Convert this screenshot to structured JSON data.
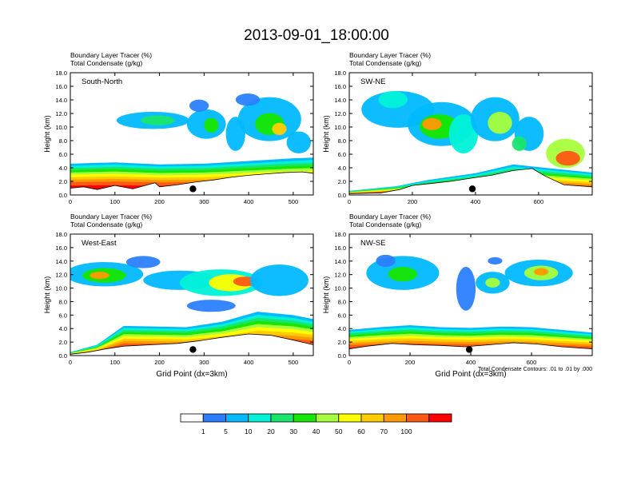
{
  "title": "2013-09-01_18:00:00",
  "colors": [
    "#ffffff",
    "#2b7fff",
    "#00b9ff",
    "#00f2d8",
    "#1ae56b",
    "#16e600",
    "#a6ff3c",
    "#ffff00",
    "#ffcc00",
    "#ff9900",
    "#ff5a14",
    "#ff0000"
  ],
  "colorbar": {
    "labels": [
      "1",
      "5",
      "10",
      "20",
      "30",
      "40",
      "50",
      "60",
      "70",
      "100"
    ]
  },
  "chart_data": [
    {
      "type": "heatmap",
      "panel_label": "South-North",
      "titles": [
        "Boundary Layer Tracer   (%)",
        "Total Condensate   (g/kg)"
      ],
      "ylabel": "Height (km)",
      "xlabel": "",
      "ylim": [
        0,
        18
      ],
      "xlim": [
        0,
        545
      ],
      "yticks": [
        "0.0",
        "2.0",
        "4.0",
        "6.0",
        "8.0",
        "10.0",
        "12.0",
        "14.0",
        "16.0",
        "18.0"
      ],
      "xticks": [
        0,
        100,
        200,
        300,
        400,
        500
      ],
      "xtick_labels": [
        "0",
        "100",
        "200",
        "300",
        "400",
        "500"
      ],
      "terrain_km": [
        [
          0,
          1.0
        ],
        [
          30,
          1.2
        ],
        [
          60,
          0.8
        ],
        [
          100,
          1.4
        ],
        [
          140,
          0.9
        ],
        [
          190,
          1.8
        ],
        [
          200,
          1.2
        ],
        [
          240,
          1.5
        ],
        [
          280,
          1.9
        ],
        [
          320,
          2.2
        ],
        [
          360,
          2.6
        ],
        [
          400,
          2.9
        ],
        [
          440,
          3.1
        ],
        [
          480,
          3.3
        ],
        [
          520,
          3.4
        ],
        [
          545,
          3.2
        ]
      ],
      "pbl_top_km": [
        [
          0,
          4.6
        ],
        [
          100,
          4.8
        ],
        [
          200,
          4.5
        ],
        [
          300,
          4.6
        ],
        [
          400,
          5.0
        ],
        [
          500,
          5.4
        ],
        [
          545,
          5.5
        ]
      ],
      "marker": {
        "x": 275,
        "y": 0.9
      },
      "note": ""
    },
    {
      "type": "heatmap",
      "panel_label": "SW-NE",
      "titles": [
        "Boundary Layer Tracer   (%)",
        "Total Condensate   (g/kg)"
      ],
      "ylabel": "Height (km)",
      "xlabel": "",
      "ylim": [
        0,
        18
      ],
      "xlim": [
        0,
        770
      ],
      "yticks": [
        "0.0",
        "2.0",
        "4.0",
        "6.0",
        "8.0",
        "10.0",
        "12.0",
        "14.0",
        "16.0",
        "18.0"
      ],
      "xticks": [
        0,
        200,
        400,
        600
      ],
      "xtick_labels": [
        "0",
        "200",
        "400",
        "600"
      ],
      "terrain_km": [
        [
          0,
          0.2
        ],
        [
          100,
          0.3
        ],
        [
          160,
          0.8
        ],
        [
          200,
          1.4
        ],
        [
          260,
          1.7
        ],
        [
          320,
          2.0
        ],
        [
          390,
          2.5
        ],
        [
          450,
          2.9
        ],
        [
          520,
          3.6
        ],
        [
          580,
          3.9
        ],
        [
          620,
          2.8
        ],
        [
          680,
          1.5
        ],
        [
          770,
          1.2
        ]
      ],
      "pbl_top_km": [
        [
          0,
          0.6
        ],
        [
          150,
          1.3
        ],
        [
          250,
          2.2
        ],
        [
          400,
          3.2
        ],
        [
          520,
          4.5
        ],
        [
          620,
          4.0
        ],
        [
          770,
          3.3
        ]
      ],
      "marker": {
        "x": 390,
        "y": 0.9
      },
      "note": ""
    },
    {
      "type": "heatmap",
      "panel_label": "West-East",
      "titles": [
        "Boundary Layer Tracer   (%)",
        "Total Condensate   (g/kg)"
      ],
      "ylabel": "Height (km)",
      "xlabel": "Grid Point (dx=3km)",
      "ylim": [
        0,
        18
      ],
      "xlim": [
        0,
        545
      ],
      "yticks": [
        "0.0",
        "2.0",
        "4.0",
        "6.0",
        "8.0",
        "10.0",
        "12.0",
        "14.0",
        "16.0",
        "18.0"
      ],
      "xticks": [
        0,
        100,
        200,
        300,
        400,
        500
      ],
      "xtick_labels": [
        "0",
        "100",
        "200",
        "300",
        "400",
        "500"
      ],
      "terrain_km": [
        [
          0,
          0.2
        ],
        [
          40,
          0.5
        ],
        [
          80,
          1.0
        ],
        [
          120,
          1.4
        ],
        [
          180,
          1.6
        ],
        [
          240,
          1.8
        ],
        [
          290,
          2.2
        ],
        [
          340,
          2.7
        ],
        [
          400,
          3.2
        ],
        [
          450,
          3.0
        ],
        [
          500,
          2.3
        ],
        [
          545,
          1.6
        ]
      ],
      "pbl_top_km": [
        [
          0,
          0.5
        ],
        [
          60,
          1.6
        ],
        [
          120,
          4.4
        ],
        [
          200,
          4.3
        ],
        [
          260,
          4.2
        ],
        [
          340,
          5.0
        ],
        [
          420,
          6.5
        ],
        [
          500,
          6.0
        ],
        [
          545,
          5.4
        ]
      ],
      "marker": {
        "x": 275,
        "y": 0.9
      },
      "note": ""
    },
    {
      "type": "heatmap",
      "panel_label": "NW-SE",
      "titles": [
        "Boundary Layer Tracer   (%)",
        "Total Condensate   (g/kg)"
      ],
      "ylabel": "Height (km)",
      "xlabel": "Grid Point (dx=3km)",
      "ylim": [
        0,
        18
      ],
      "xlim": [
        0,
        800
      ],
      "yticks": [
        "0.0",
        "2.0",
        "4.0",
        "6.0",
        "8.0",
        "10.0",
        "12.0",
        "14.0",
        "16.0",
        "18.0"
      ],
      "xticks": [
        0,
        200,
        400,
        600
      ],
      "xtick_labels": [
        "0",
        "200",
        "400",
        "600"
      ],
      "terrain_km": [
        [
          0,
          1.0
        ],
        [
          60,
          1.4
        ],
        [
          140,
          1.8
        ],
        [
          220,
          1.6
        ],
        [
          300,
          1.5
        ],
        [
          380,
          1.3
        ],
        [
          460,
          1.6
        ],
        [
          540,
          1.9
        ],
        [
          620,
          1.7
        ],
        [
          700,
          1.3
        ],
        [
          800,
          1.0
        ]
      ],
      "pbl_top_km": [
        [
          0,
          3.8
        ],
        [
          100,
          4.2
        ],
        [
          200,
          4.5
        ],
        [
          300,
          4.2
        ],
        [
          400,
          4.1
        ],
        [
          500,
          4.3
        ],
        [
          600,
          4.2
        ],
        [
          700,
          3.8
        ],
        [
          800,
          3.4
        ]
      ],
      "marker": {
        "x": 395,
        "y": 0.9
      },
      "note": "Total Condensate Contours: .01 to .01 by .000"
    }
  ]
}
